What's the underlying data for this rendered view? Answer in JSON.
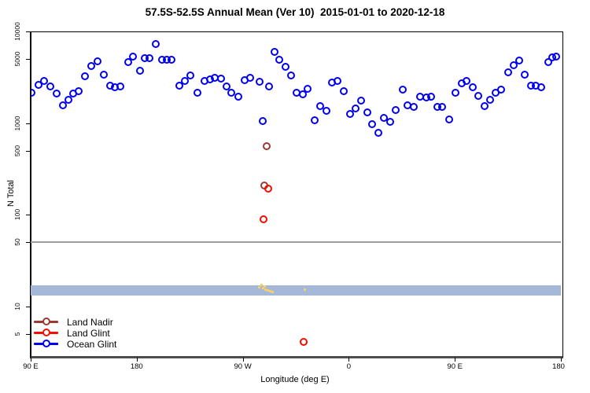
{
  "title": "57.5S-52.5S Annual Mean (Ver 10)  2015-01-01 to 2020-12-18",
  "legend": {
    "items": [
      {
        "label": "Land Nadir",
        "color": "#9C3A32"
      },
      {
        "label": "Land Glint",
        "color": "#F50D00"
      },
      {
        "label": "Ocean Glint",
        "color": "#0000F0"
      }
    ]
  },
  "chart_data": {
    "type": "scatter",
    "title": "57.5S-52.5S Annual Mean (Ver 10)  2015-01-01 to 2020-12-18",
    "xlabel": "Longitude (deg E)",
    "ylabel": "N Total",
    "x_axis": {
      "note": "longitude axis wraps eastward from 90E through 180, 90W, 0, 90E to 180; stored as continuous degrees 90-540",
      "range": [
        90,
        540
      ],
      "ticks": [
        90,
        180,
        270,
        360,
        450,
        540
      ],
      "tick_labels": [
        "90 E",
        "180",
        "90 W",
        "0",
        "90 E",
        "180"
      ]
    },
    "y_axis": {
      "scale": "log10",
      "range": [
        2.9,
        10000
      ],
      "ticks": [
        10000,
        5000,
        1000,
        500,
        100,
        50,
        10,
        5
      ],
      "tick_labels": [
        "10000",
        "5000",
        "1000",
        "500",
        "100",
        "50",
        "10",
        "5"
      ]
    },
    "grid": false,
    "legend_position": "bottom-left-inside",
    "marker": "open-circle",
    "series": [
      {
        "name": "Land Nadir",
        "color": "#9C3A32",
        "points": [
          [
            290.2,
            560
          ],
          [
            288.0,
            207
          ]
        ]
      },
      {
        "name": "Land Glint",
        "color": "#F50D00",
        "points": [
          [
            291.3,
            193
          ],
          [
            287.3,
            89
          ],
          [
            321.8,
            4.1
          ]
        ]
      },
      {
        "name": "Ocean Glint",
        "color": "#0000F0",
        "points": [
          [
            90.7,
            2150
          ],
          [
            96.5,
            2620
          ],
          [
            101.3,
            2880
          ],
          [
            106.5,
            2500
          ],
          [
            112.0,
            2100
          ],
          [
            117.5,
            1570
          ],
          [
            121.8,
            1800
          ],
          [
            126.2,
            2100
          ],
          [
            130.7,
            2240
          ],
          [
            135.8,
            3210
          ],
          [
            141.5,
            4150
          ],
          [
            146.7,
            4730
          ],
          [
            152.0,
            3370
          ],
          [
            157.1,
            2560
          ],
          [
            161.5,
            2470
          ],
          [
            166.0,
            2510
          ],
          [
            172.7,
            4670
          ],
          [
            177.1,
            5320
          ],
          [
            182.7,
            3720
          ],
          [
            186.9,
            5110
          ],
          [
            191.1,
            5110
          ],
          [
            196.2,
            7340
          ],
          [
            201.8,
            4950
          ],
          [
            205.8,
            4950
          ],
          [
            209.5,
            4950
          ],
          [
            216.5,
            2540
          ],
          [
            220.9,
            2860
          ],
          [
            225.3,
            3320
          ],
          [
            231.5,
            2150
          ],
          [
            237.8,
            2860
          ],
          [
            242.2,
            3000
          ],
          [
            246.0,
            3120
          ],
          [
            251.5,
            3060
          ],
          [
            256.0,
            2510
          ],
          [
            260.5,
            2150
          ],
          [
            266.0,
            1930
          ],
          [
            271.5,
            2910
          ],
          [
            276.5,
            3120
          ],
          [
            284.0,
            2830
          ],
          [
            286.7,
            1050
          ],
          [
            292.0,
            2510
          ],
          [
            296.7,
            5960
          ],
          [
            301.3,
            4900
          ],
          [
            306.5,
            4100
          ],
          [
            311.3,
            3280
          ],
          [
            316.0,
            2120
          ],
          [
            320.9,
            2060
          ],
          [
            324.9,
            2340
          ],
          [
            331.1,
            1070
          ],
          [
            336.0,
            1530
          ],
          [
            340.9,
            1360
          ],
          [
            346.0,
            2770
          ],
          [
            350.5,
            2860
          ],
          [
            355.5,
            2240
          ],
          [
            360.9,
            1260
          ],
          [
            366.0,
            1430
          ],
          [
            370.4,
            1750
          ],
          [
            375.5,
            1300
          ],
          [
            380.0,
            980
          ],
          [
            385.3,
            780
          ],
          [
            389.8,
            1140
          ],
          [
            394.9,
            1030
          ],
          [
            400.0,
            1390
          ],
          [
            406.0,
            2300
          ],
          [
            410.0,
            1560
          ],
          [
            415.1,
            1500
          ],
          [
            420.2,
            1950
          ],
          [
            425.5,
            1900
          ],
          [
            430.0,
            1920
          ],
          [
            435.1,
            1510
          ],
          [
            439.5,
            1500
          ],
          [
            445.1,
            1100
          ],
          [
            450.7,
            2120
          ],
          [
            455.8,
            2730
          ],
          [
            460.0,
            2900
          ],
          [
            465.1,
            2470
          ],
          [
            470.0,
            1990
          ],
          [
            475.1,
            1530
          ],
          [
            480.2,
            1800
          ],
          [
            484.7,
            2120
          ],
          [
            489.1,
            2300
          ],
          [
            495.1,
            3550
          ],
          [
            500.2,
            4240
          ],
          [
            504.7,
            4830
          ],
          [
            509.1,
            3370
          ],
          [
            514.5,
            2540
          ],
          [
            518.9,
            2560
          ],
          [
            523.3,
            2470
          ],
          [
            529.1,
            4670
          ],
          [
            532.9,
            5220
          ],
          [
            535.8,
            5320
          ]
        ]
      }
    ],
    "annotations": {
      "horizontal_line": {
        "y": 50,
        "color": "#9C9C9C"
      },
      "horizontal_band": {
        "y_from": 13,
        "y_to": 17,
        "color": "#A6B8D8"
      },
      "yellow_marks": {
        "color": "#F7CE6E",
        "points": [
          [
            283.9,
            16.2
          ],
          [
            285.9,
            16.9
          ],
          [
            287.6,
            15.9
          ],
          [
            288.6,
            16.4
          ],
          [
            289.6,
            15.2
          ],
          [
            291.6,
            14.9
          ],
          [
            293.6,
            14.6
          ],
          [
            295.0,
            14.4
          ],
          [
            322.7,
            15.2
          ]
        ]
      }
    }
  }
}
